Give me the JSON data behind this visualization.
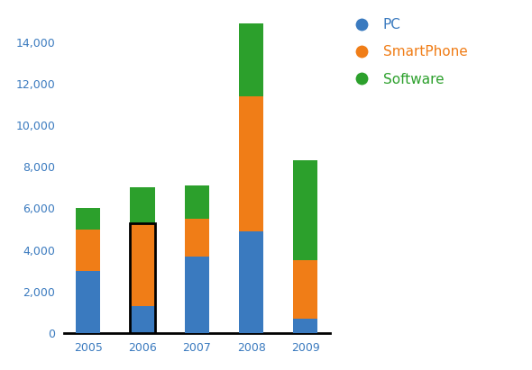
{
  "years": [
    "2005",
    "2006",
    "2007",
    "2008",
    "2009"
  ],
  "pc": [
    3000,
    1300,
    3700,
    4900,
    700
  ],
  "smartphone": [
    2000,
    4000,
    1800,
    6500,
    2800
  ],
  "software": [
    1000,
    1700,
    1600,
    3500,
    4800
  ],
  "pc_color": "#3a7abf",
  "smartphone_color": "#f07d17",
  "software_color": "#2ca02c",
  "background_color": "#ffffff",
  "ylim": [
    0,
    15500
  ],
  "yticks": [
    0,
    2000,
    4000,
    6000,
    8000,
    10000,
    12000,
    14000
  ],
  "legend_labels": [
    "PC",
    "SmartPhone",
    "Software"
  ],
  "legend_text_colors": [
    "#3a7abf",
    "#f07d17",
    "#2ca02c"
  ],
  "outlined_bar_index": 1,
  "bar_width": 0.45,
  "tick_color": "#3a7abf",
  "spine_color": "#000000"
}
